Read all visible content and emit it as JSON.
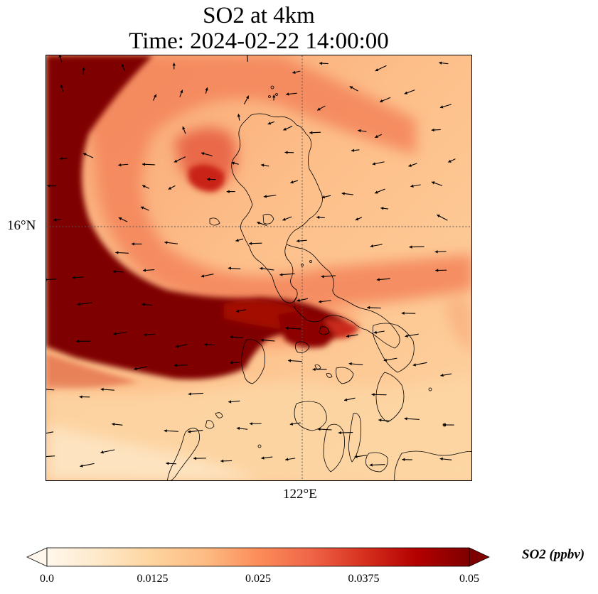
{
  "title": {
    "line1": "SO2 at 4km",
    "line2": "Time: 2024-02-22 14:00:00"
  },
  "map": {
    "gridlines": {
      "lat_label": "16°N",
      "lon_label": "122°E"
    },
    "colors": {
      "land_outline": "#000000",
      "gridline": "#555555",
      "arrow": "#000000"
    }
  },
  "colorbar": {
    "label": "SO2 (ppbv)",
    "ticks": [
      "0.0",
      "0.0125",
      "0.025",
      "0.0375",
      "0.05"
    ],
    "range": [
      0.0,
      0.05
    ],
    "extend": "both",
    "colormap": "OrRd",
    "colors": [
      "#fff7ec",
      "#fee8c8",
      "#fdd49e",
      "#fdbb84",
      "#fc8d59",
      "#ef6548",
      "#d7301f",
      "#b30000",
      "#7f0000"
    ]
  }
}
